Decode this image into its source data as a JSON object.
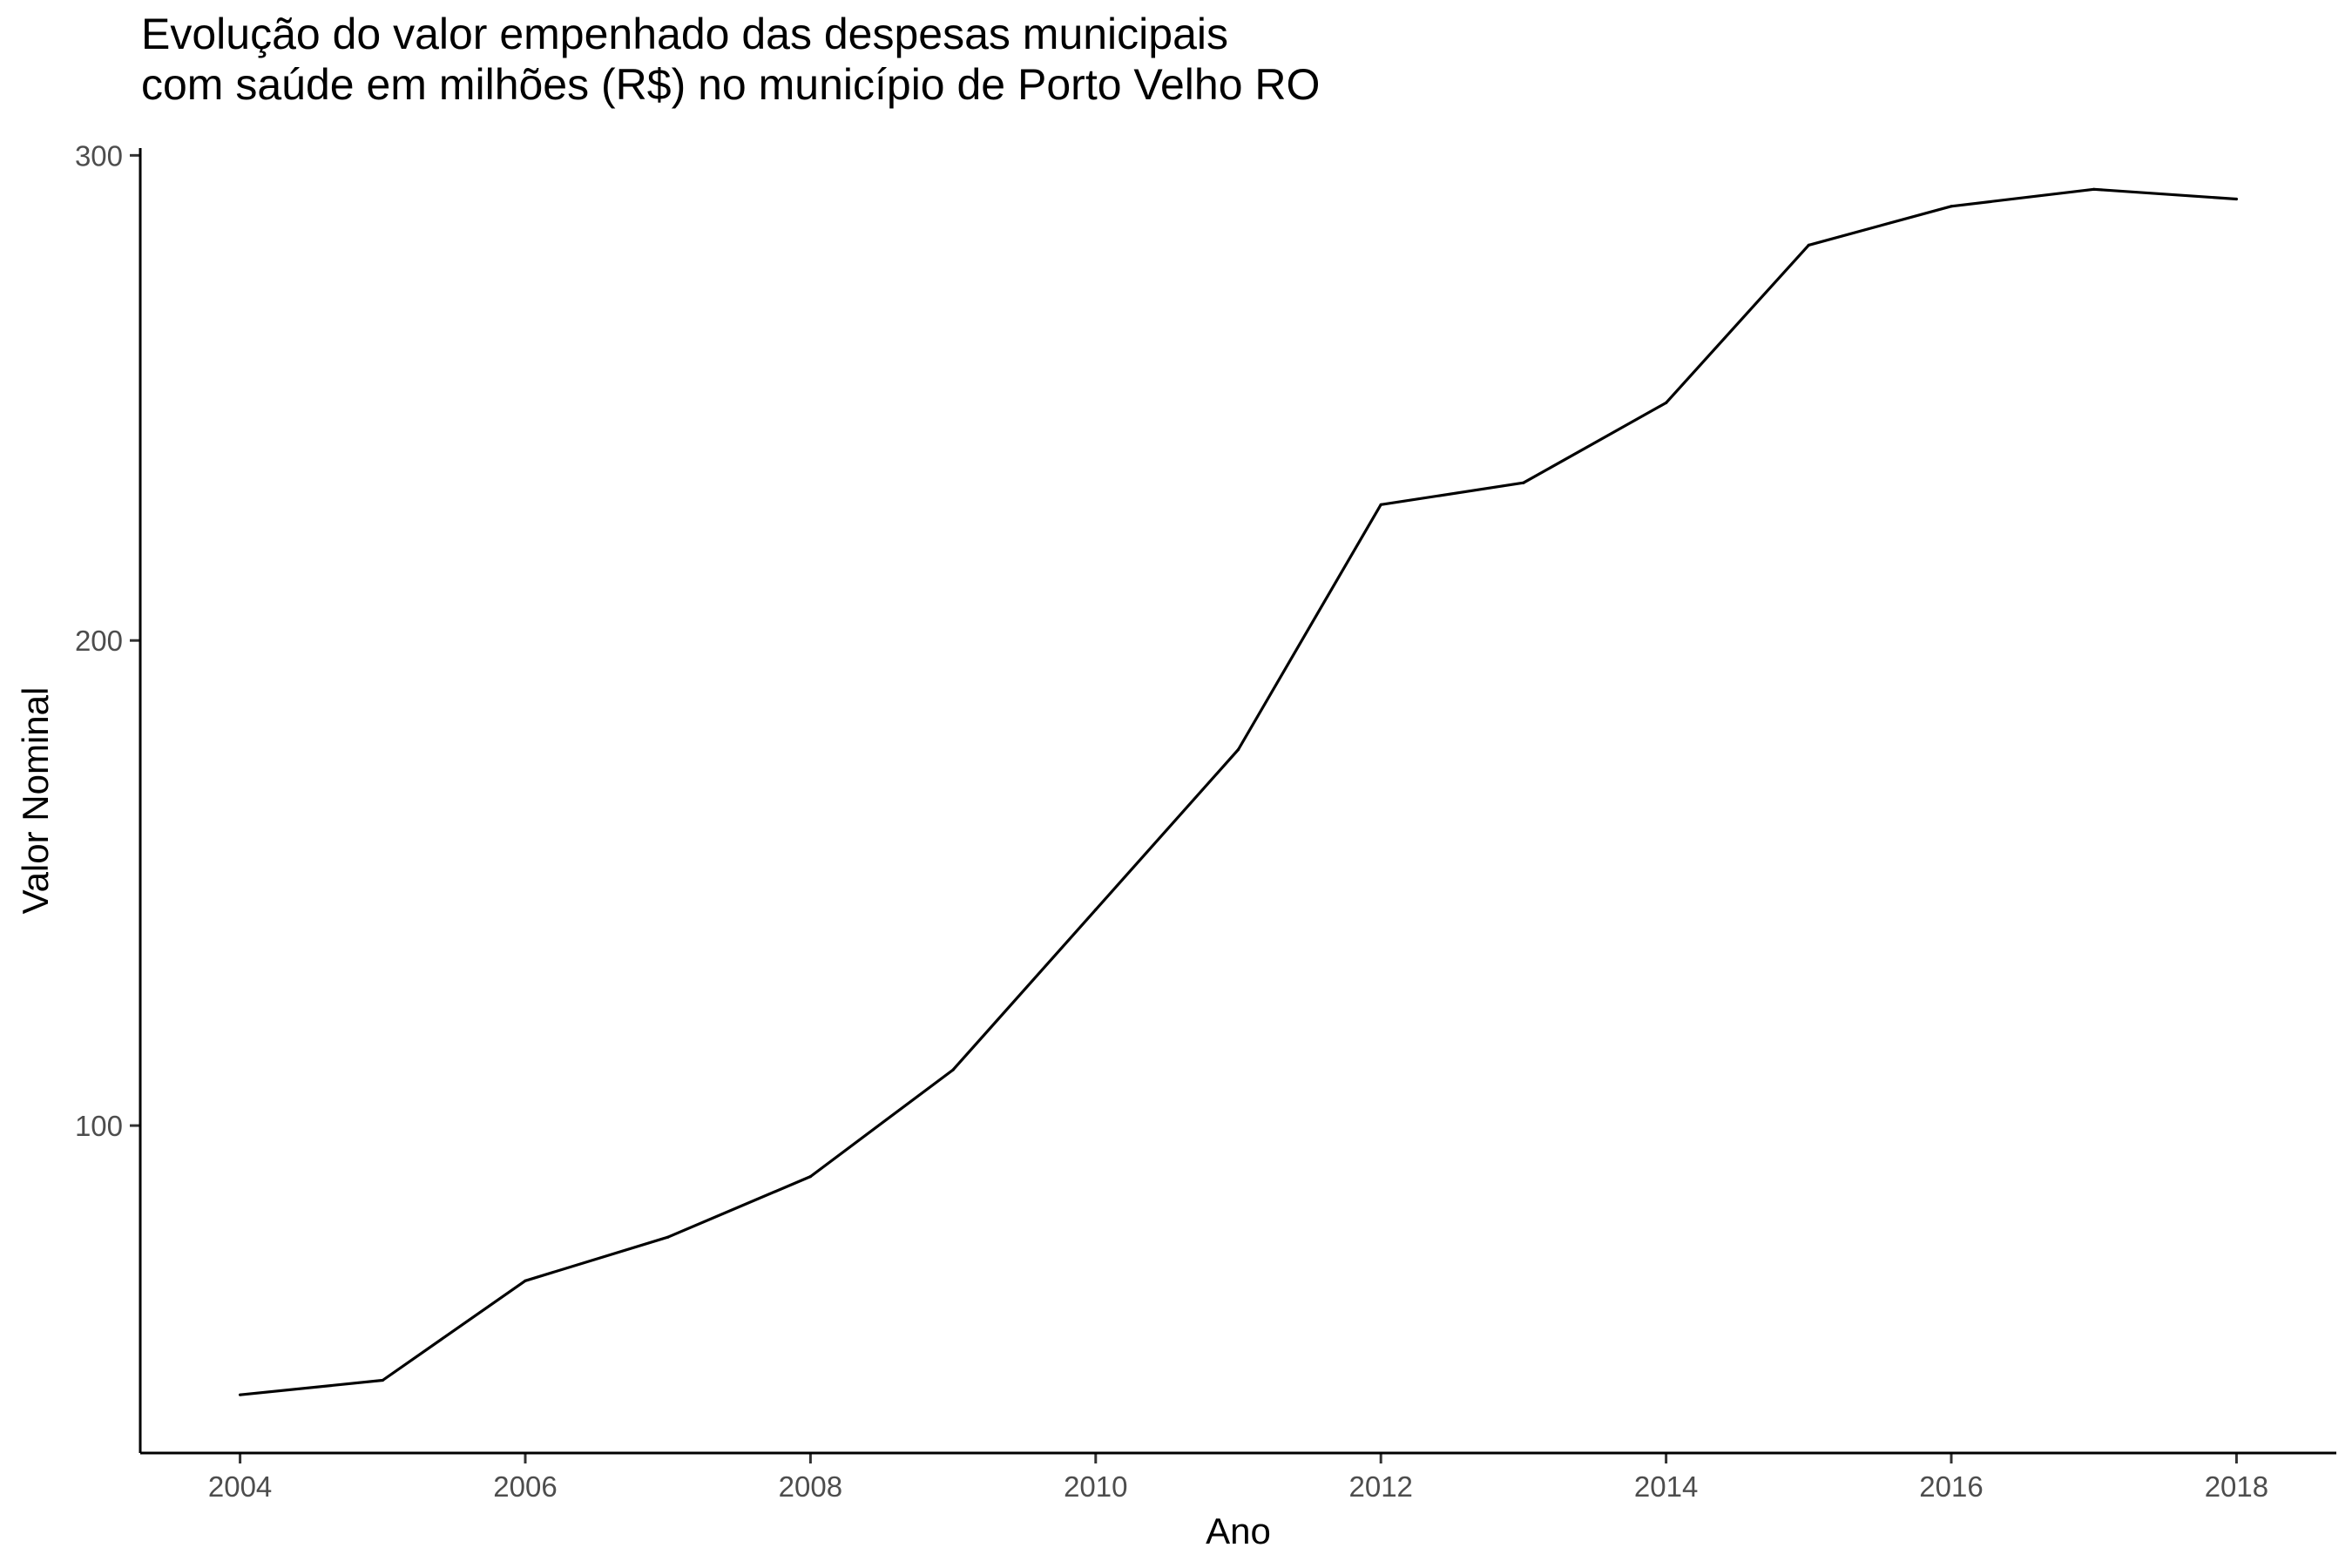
{
  "chart_data": {
    "type": "line",
    "title_lines": [
      "Evolução do valor empenhado das despesas municipais",
      "com saúde em milhões (R$) no município de Porto Velho RO"
    ],
    "xlabel": "Ano",
    "ylabel": "Valor Nominal",
    "x": [
      2004,
      2005,
      2006,
      2007,
      2008,
      2009,
      2010,
      2011,
      2012,
      2013,
      2014,
      2015,
      2016,
      2017,
      2018
    ],
    "values": [
      44.5,
      47.5,
      68,
      77,
      89.5,
      111.5,
      144.5,
      177.5,
      228,
      232.5,
      249,
      281.5,
      289.5,
      293,
      291
    ],
    "xticks": [
      "2004",
      "2006",
      "2008",
      "2010",
      "2012",
      "2014",
      "2016",
      "2018"
    ],
    "yticks": [
      "100",
      "200",
      "300"
    ],
    "xlim": [
      2003.3,
      2018.7
    ],
    "ylim": [
      32.5,
      301.5
    ],
    "grid": false,
    "line_color": "#000000"
  }
}
